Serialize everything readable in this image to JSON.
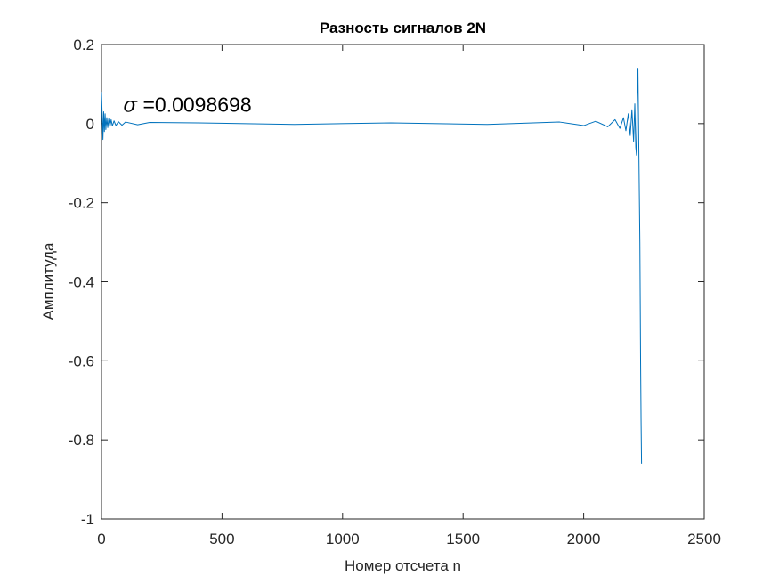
{
  "chart_data": {
    "type": "line",
    "title": "Разность сигналов 2N",
    "xlabel": "Номер отсчета n",
    "ylabel": "Амплитуда",
    "xlim": [
      0,
      2500
    ],
    "ylim": [
      -1,
      0.2
    ],
    "xticks": [
      0,
      500,
      1000,
      1500,
      2000,
      2500
    ],
    "xtick_labels": [
      "0",
      "500",
      "1000",
      "1500",
      "2000",
      "2500"
    ],
    "yticks": [
      0.2,
      0,
      -0.2,
      -0.4,
      -0.6,
      -0.8,
      -1
    ],
    "ytick_labels": [
      "0.2",
      "0",
      "-0.2",
      "-0.4",
      "-0.6",
      "-0.8",
      "-1"
    ],
    "grid": false,
    "line_color": "#0072BD",
    "annotation": {
      "symbol": "σ",
      "text": " =0.0098698",
      "x": 90,
      "y": 0.048
    },
    "series": [
      {
        "x": [
          0,
          3,
          6,
          9,
          12,
          15,
          18,
          22,
          26,
          30,
          35,
          40,
          45,
          52,
          60,
          70,
          85,
          100,
          150,
          200,
          400,
          800,
          1200,
          1600,
          1900,
          2000,
          2050,
          2100,
          2130,
          2150,
          2165,
          2175,
          2185,
          2193,
          2200,
          2207,
          2212,
          2216,
          2219,
          2222,
          2225,
          2229,
          2233,
          2236,
          2238,
          2240
        ],
        "y": [
          0.08,
          0.02,
          -0.04,
          0.03,
          -0.02,
          0.025,
          -0.015,
          0.015,
          -0.01,
          0.012,
          -0.008,
          0.01,
          -0.006,
          0.007,
          -0.005,
          0.005,
          -0.004,
          0.004,
          -0.003,
          0.003,
          0.002,
          -0.002,
          0.002,
          -0.002,
          0.004,
          -0.005,
          0.006,
          -0.008,
          0.01,
          -0.012,
          0.015,
          -0.018,
          0.025,
          -0.03,
          0.035,
          -0.045,
          0.05,
          -0.06,
          -0.08,
          0.07,
          0.14,
          -0.08,
          -0.3,
          -0.6,
          -0.75,
          -0.86
        ]
      }
    ]
  }
}
